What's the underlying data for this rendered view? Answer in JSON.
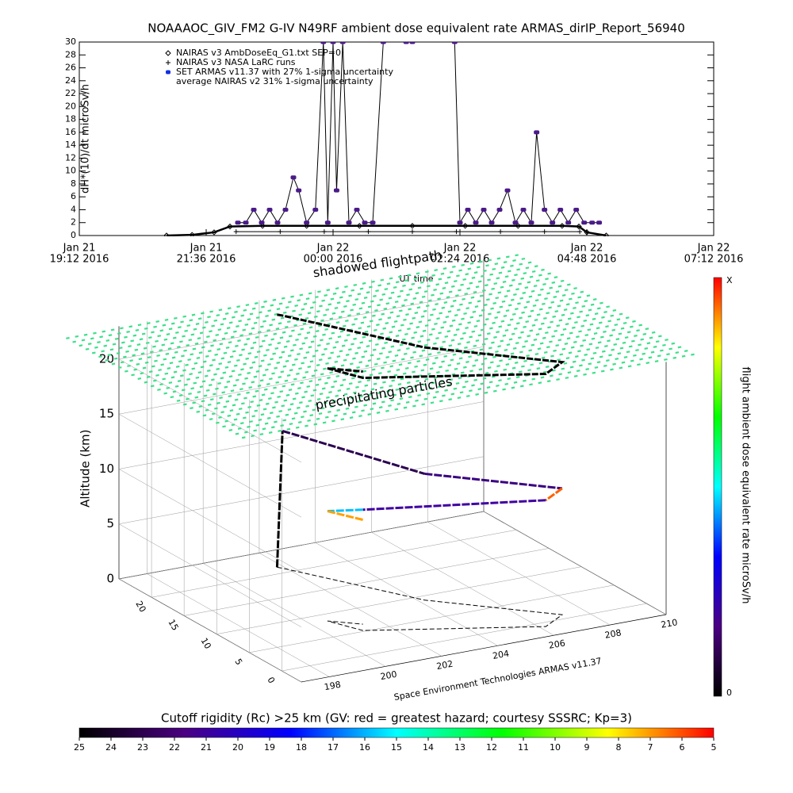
{
  "chart_data": [
    {
      "type": "timeseries",
      "title": "NOAAAOC_GIV_FM2 G-IV   N49RF  ambient dose equivalent rate ARMAS_dirIP_Report_56940",
      "x_label": "UT time",
      "y_label": "dH*(10)/dt microSv/h",
      "xlim": [
        "2016-01-21T19:12",
        "2016-01-22T07:12"
      ],
      "xticks": [
        {
          "value": "2016-01-21T19:12",
          "label": [
            "Jan 21",
            "19:12 2016"
          ]
        },
        {
          "value": "2016-01-21T21:36",
          "label": [
            "Jan 21",
            "21:36 2016"
          ]
        },
        {
          "value": "2016-01-22T00:00",
          "label": [
            "Jan 22",
            "00:00 2016"
          ]
        },
        {
          "value": "2016-01-22T02:24",
          "label": [
            "Jan 22",
            "02:24 2016"
          ]
        },
        {
          "value": "2016-01-22T04:48",
          "label": [
            "Jan 22",
            "04:48 2016"
          ]
        },
        {
          "value": "2016-01-22T07:12",
          "label": [
            "Jan 22",
            "07:12 2016"
          ]
        }
      ],
      "ylim": [
        0,
        30
      ],
      "yticks": [
        0,
        2,
        4,
        6,
        8,
        10,
        12,
        14,
        16,
        18,
        20,
        22,
        24,
        26,
        28,
        30
      ],
      "note": "average NAIRAS v2 31% 1-sigma uncertainty",
      "series": [
        {
          "name": "NAIRAS v3 AmbDoseEq_G1.txt SEP=0",
          "marker": "diamond",
          "color": "#000000",
          "x": [
            "2016-01-21T20:51",
            "2016-01-21T21:20",
            "2016-01-21T21:45",
            "2016-01-21T22:03",
            "2016-01-21T22:40",
            "2016-01-21T23:30",
            "2016-01-22T00:30",
            "2016-01-22T01:30",
            "2016-01-22T02:30",
            "2016-01-22T03:30",
            "2016-01-22T04:20",
            "2016-01-22T04:39",
            "2016-01-22T04:48",
            "2016-01-22T05:10"
          ],
          "values": [
            0,
            0.1,
            0.5,
            1.4,
            1.5,
            1.5,
            1.5,
            1.5,
            1.5,
            1.5,
            1.5,
            1.4,
            0.5,
            0
          ]
        },
        {
          "name": "NAIRAS v3 NASA LaRC runs",
          "marker": "plus",
          "color": "#000000",
          "x": [
            "2016-01-21T22:10",
            "2016-01-21T23:00",
            "2016-01-21T23:50",
            "2016-01-22T00:40",
            "2016-01-22T01:30",
            "2016-01-22T02:20",
            "2016-01-22T03:10",
            "2016-01-22T04:00",
            "2016-01-22T04:40"
          ],
          "values": [
            0.6,
            0.6,
            0.6,
            0.6,
            0.6,
            0.6,
            0.6,
            0.6,
            0.6
          ]
        },
        {
          "name": "SET ARMAS v11.37 with 27% 1-sigma uncertainty",
          "marker": "dot",
          "color": "#4a1a8a",
          "x": [
            "2016-01-21T22:12",
            "2016-01-21T22:21",
            "2016-01-21T22:30",
            "2016-01-21T22:39",
            "2016-01-21T22:48",
            "2016-01-21T22:57",
            "2016-01-21T23:06",
            "2016-01-21T23:15",
            "2016-01-21T23:21",
            "2016-01-21T23:30",
            "2016-01-21T23:40",
            "2016-01-21T23:49",
            "2016-01-21T23:54",
            "2016-01-22T00:00",
            "2016-01-22T00:04",
            "2016-01-22T00:11",
            "2016-01-22T00:18",
            "2016-01-22T00:27",
            "2016-01-22T00:36",
            "2016-01-22T00:45",
            "2016-01-22T00:57",
            "2016-01-22T01:23",
            "2016-01-22T01:30",
            "2016-01-22T02:18",
            "2016-01-22T02:24",
            "2016-01-22T02:33",
            "2016-01-22T02:42",
            "2016-01-22T02:51",
            "2016-01-22T03:00",
            "2016-01-22T03:09",
            "2016-01-22T03:18",
            "2016-01-22T03:27",
            "2016-01-22T03:36",
            "2016-01-22T03:45",
            "2016-01-22T03:51",
            "2016-01-22T04:00",
            "2016-01-22T04:09",
            "2016-01-22T04:18",
            "2016-01-22T04:27",
            "2016-01-22T04:36",
            "2016-01-22T04:45",
            "2016-01-22T04:54",
            "2016-01-22T05:02"
          ],
          "values": [
            2,
            2,
            4,
            2,
            4,
            2,
            4,
            9,
            7,
            2,
            4,
            30,
            2,
            30,
            7,
            30,
            2,
            4,
            2,
            2,
            30,
            30,
            30,
            30,
            2,
            4,
            2,
            4,
            2,
            4,
            7,
            2,
            4,
            2,
            16,
            4,
            2,
            4,
            2,
            4,
            2,
            2,
            2
          ]
        }
      ]
    },
    {
      "type": "trajectory3d",
      "z_label": "Altitude (km)",
      "annotations": [
        "shadowed flightpath",
        "precipitating particles",
        "Space Environment Technologies ARMAS v11.37"
      ],
      "xlim": [
        197,
        210
      ],
      "xticks": [
        198,
        200,
        202,
        204,
        206,
        208,
        210
      ],
      "ylim": [
        -3,
        25
      ],
      "yticks": [
        0,
        5,
        10,
        15,
        20
      ],
      "zlim": [
        0,
        23
      ],
      "zticks": [
        0,
        5,
        10,
        15,
        20
      ],
      "flight": {
        "lon": [
          201.8,
          201.9,
          204.2,
          207.2,
          206.2,
          201.1,
          200.6,
          201.4
        ],
        "lat": [
          21.4,
          21.0,
          9.1,
          0.9,
          -0.9,
          5.2,
          8.5,
          6.5
        ],
        "alt": [
          0,
          12.5,
          11.5,
          11.5,
          11.5,
          11.0,
          10.0,
          9.5
        ],
        "segment_colors": [
          "#000000",
          "#2a0050",
          "#3a0080",
          "#ff6000",
          "#4000a0",
          "#00c0ff",
          "#ffa000"
        ]
      },
      "colorbar": {
        "label": "flight ambient dose equivalent rate microSv/h",
        "min_label": 0,
        "max_label": "X",
        "colors": [
          "#000000",
          "#4b0082",
          "#0000ff",
          "#00ffff",
          "#00ff00",
          "#ffff00",
          "#ff0000"
        ]
      }
    },
    {
      "type": "colorbar",
      "title": "Cutoff rigidity (Rc) >25 km (GV: red = greatest hazard; courtesy SSSRC; Kp=3)",
      "clim": [
        25,
        5
      ],
      "ticks": [
        25,
        24,
        23,
        22,
        21,
        20,
        19,
        18,
        17,
        16,
        15,
        14,
        13,
        12,
        11,
        10,
        9,
        8,
        7,
        6,
        5
      ],
      "colors": [
        "#000000",
        "#4b0082",
        "#0000ff",
        "#00ffff",
        "#00ff00",
        "#ffff00",
        "#ff0000"
      ]
    }
  ]
}
